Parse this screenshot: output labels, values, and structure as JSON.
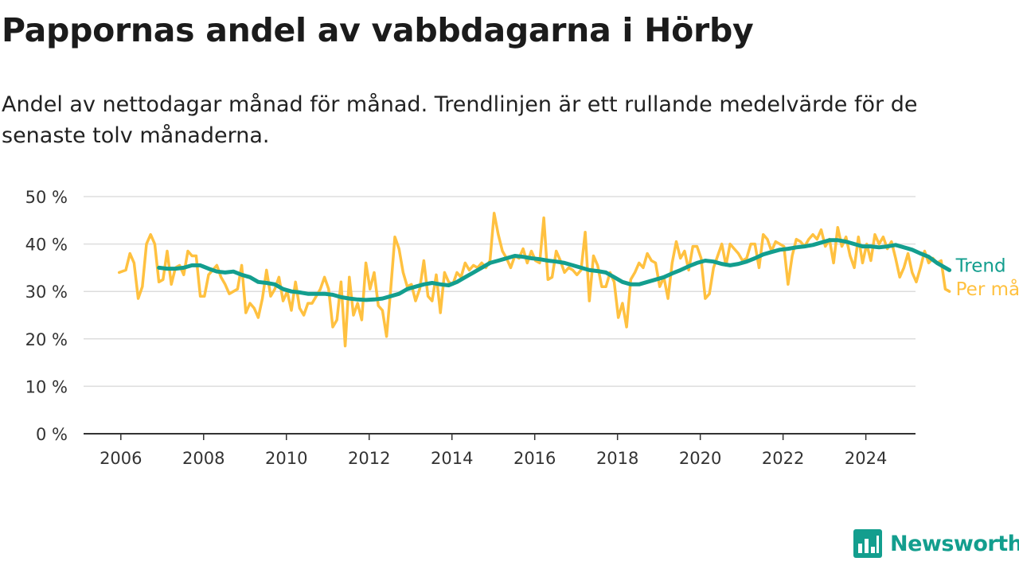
{
  "title": "Pappornas andel av vabbdagarna i Hörby",
  "subtitle": "Andel av nettodagar månad för månad. Trendlinjen är ett rullande medelvärde för de senaste tolv månaderna.",
  "brand": {
    "name": "Newsworthy",
    "color": "#139e8e"
  },
  "colors": {
    "monthly": "#ffc140",
    "trend": "#139e8e",
    "grid": "#dddddd",
    "axis": "#333333"
  },
  "chart_data": {
    "type": "line",
    "title": "Pappornas andel av vabbdagarna i Hörby",
    "xlabel": "",
    "ylabel": "",
    "x_ticks": [
      "2006",
      "2008",
      "2010",
      "2012",
      "2014",
      "2016",
      "2018",
      "2020",
      "2022",
      "2024"
    ],
    "y_ticks": [
      "0 %",
      "10 %",
      "20 %",
      "30 %",
      "40 %",
      "50 %"
    ],
    "xlim": [
      2005.1,
      2025.2
    ],
    "ylim": [
      0,
      50
    ],
    "grid": "horizontal",
    "legend": "end-of-line labels",
    "series": [
      {
        "name": "Per månad",
        "color": "#ffc140",
        "points": [
          [
            2005.96,
            34
          ],
          [
            2006.12,
            34.5
          ],
          [
            2006.22,
            38
          ],
          [
            2006.32,
            36
          ],
          [
            2006.42,
            28.5
          ],
          [
            2006.52,
            31
          ],
          [
            2006.62,
            40
          ],
          [
            2006.72,
            42
          ],
          [
            2006.82,
            40
          ],
          [
            2006.92,
            32
          ],
          [
            2007.02,
            32.5
          ],
          [
            2007.12,
            38.5
          ],
          [
            2007.22,
            31.5
          ],
          [
            2007.32,
            35
          ],
          [
            2007.42,
            35.5
          ],
          [
            2007.52,
            33.5
          ],
          [
            2007.62,
            38.5
          ],
          [
            2007.72,
            37.5
          ],
          [
            2007.82,
            37.5
          ],
          [
            2007.92,
            29
          ],
          [
            2008.02,
            29
          ],
          [
            2008.12,
            33.5
          ],
          [
            2008.22,
            34.5
          ],
          [
            2008.32,
            35.5
          ],
          [
            2008.42,
            33
          ],
          [
            2008.52,
            31.5
          ],
          [
            2008.62,
            29.5
          ],
          [
            2008.72,
            30
          ],
          [
            2008.82,
            30.5
          ],
          [
            2008.92,
            35.5
          ],
          [
            2009.02,
            25.5
          ],
          [
            2009.12,
            27.5
          ],
          [
            2009.22,
            26.5
          ],
          [
            2009.32,
            24.5
          ],
          [
            2009.42,
            28.5
          ],
          [
            2009.52,
            34.5
          ],
          [
            2009.62,
            29
          ],
          [
            2009.72,
            30.5
          ],
          [
            2009.82,
            33
          ],
          [
            2009.92,
            28
          ],
          [
            2010.02,
            30
          ],
          [
            2010.12,
            26
          ],
          [
            2010.22,
            32
          ],
          [
            2010.32,
            26.5
          ],
          [
            2010.42,
            25
          ],
          [
            2010.52,
            27.5
          ],
          [
            2010.62,
            27.5
          ],
          [
            2010.72,
            29
          ],
          [
            2010.82,
            30.5
          ],
          [
            2010.92,
            33
          ],
          [
            2011.02,
            30.5
          ],
          [
            2011.12,
            22.5
          ],
          [
            2011.22,
            24
          ],
          [
            2011.32,
            32
          ],
          [
            2011.42,
            18.5
          ],
          [
            2011.52,
            33
          ],
          [
            2011.62,
            25
          ],
          [
            2011.72,
            27.5
          ],
          [
            2011.82,
            24
          ],
          [
            2011.92,
            36
          ],
          [
            2012.02,
            30.5
          ],
          [
            2012.12,
            34
          ],
          [
            2012.22,
            27
          ],
          [
            2012.32,
            26
          ],
          [
            2012.42,
            20.5
          ],
          [
            2012.52,
            30.5
          ],
          [
            2012.62,
            41.5
          ],
          [
            2012.72,
            39
          ],
          [
            2012.82,
            34
          ],
          [
            2012.92,
            31
          ],
          [
            2013.02,
            31.5
          ],
          [
            2013.12,
            28
          ],
          [
            2013.22,
            30.5
          ],
          [
            2013.32,
            36.5
          ],
          [
            2013.42,
            29
          ],
          [
            2013.52,
            28
          ],
          [
            2013.62,
            33.5
          ],
          [
            2013.72,
            25.5
          ],
          [
            2013.82,
            34
          ],
          [
            2013.92,
            32
          ],
          [
            2014.02,
            31.5
          ],
          [
            2014.12,
            34
          ],
          [
            2014.22,
            33
          ],
          [
            2014.32,
            36
          ],
          [
            2014.42,
            34.5
          ],
          [
            2014.52,
            35.5
          ],
          [
            2014.62,
            35
          ],
          [
            2014.72,
            36
          ],
          [
            2014.82,
            35
          ],
          [
            2014.92,
            36.5
          ],
          [
            2015.02,
            46.5
          ],
          [
            2015.12,
            42
          ],
          [
            2015.22,
            38.5
          ],
          [
            2015.32,
            37
          ],
          [
            2015.42,
            35
          ],
          [
            2015.52,
            37.5
          ],
          [
            2015.62,
            37
          ],
          [
            2015.72,
            39
          ],
          [
            2015.82,
            36
          ],
          [
            2015.92,
            38.5
          ],
          [
            2016.02,
            36.5
          ],
          [
            2016.12,
            36
          ],
          [
            2016.22,
            45.5
          ],
          [
            2016.32,
            32.5
          ],
          [
            2016.42,
            33
          ],
          [
            2016.52,
            38.5
          ],
          [
            2016.62,
            36.5
          ],
          [
            2016.72,
            34
          ],
          [
            2016.82,
            35
          ],
          [
            2016.92,
            34.5
          ],
          [
            2017.02,
            33.5
          ],
          [
            2017.12,
            34.5
          ],
          [
            2017.22,
            42.5
          ],
          [
            2017.32,
            28
          ],
          [
            2017.42,
            37.5
          ],
          [
            2017.52,
            35.5
          ],
          [
            2017.62,
            31
          ],
          [
            2017.72,
            31
          ],
          [
            2017.82,
            34
          ],
          [
            2017.92,
            32
          ],
          [
            2018.02,
            24.5
          ],
          [
            2018.12,
            27.5
          ],
          [
            2018.22,
            22.5
          ],
          [
            2018.32,
            32.5
          ],
          [
            2018.42,
            34
          ],
          [
            2018.52,
            36
          ],
          [
            2018.62,
            35
          ],
          [
            2018.72,
            38
          ],
          [
            2018.82,
            36.5
          ],
          [
            2018.92,
            36
          ],
          [
            2019.02,
            31
          ],
          [
            2019.12,
            33
          ],
          [
            2019.22,
            28.5
          ],
          [
            2019.32,
            36
          ],
          [
            2019.42,
            40.5
          ],
          [
            2019.52,
            37
          ],
          [
            2019.62,
            38.5
          ],
          [
            2019.72,
            34.5
          ],
          [
            2019.82,
            39.5
          ],
          [
            2019.92,
            39.5
          ],
          [
            2020.02,
            37
          ],
          [
            2020.12,
            28.5
          ],
          [
            2020.22,
            29.5
          ],
          [
            2020.32,
            35
          ],
          [
            2020.42,
            37.5
          ],
          [
            2020.52,
            40
          ],
          [
            2020.62,
            35.5
          ],
          [
            2020.72,
            40
          ],
          [
            2020.82,
            39
          ],
          [
            2020.92,
            38
          ],
          [
            2021.02,
            36.5
          ],
          [
            2021.12,
            37
          ],
          [
            2021.22,
            40
          ],
          [
            2021.32,
            40
          ],
          [
            2021.42,
            35
          ],
          [
            2021.52,
            42
          ],
          [
            2021.62,
            41
          ],
          [
            2021.72,
            38.5
          ],
          [
            2021.82,
            40.5
          ],
          [
            2021.92,
            40
          ],
          [
            2022.02,
            39.5
          ],
          [
            2022.12,
            31.5
          ],
          [
            2022.22,
            37.5
          ],
          [
            2022.32,
            41
          ],
          [
            2022.42,
            40.5
          ],
          [
            2022.52,
            39.5
          ],
          [
            2022.62,
            41
          ],
          [
            2022.72,
            42
          ],
          [
            2022.82,
            41
          ],
          [
            2022.92,
            43
          ],
          [
            2023.02,
            39.5
          ],
          [
            2023.12,
            41
          ],
          [
            2023.22,
            36
          ],
          [
            2023.32,
            43.5
          ],
          [
            2023.42,
            39.5
          ],
          [
            2023.52,
            41.5
          ],
          [
            2023.62,
            37.5
          ],
          [
            2023.72,
            35
          ],
          [
            2023.82,
            41.5
          ],
          [
            2023.92,
            36
          ],
          [
            2024.02,
            40
          ],
          [
            2024.12,
            36.5
          ],
          [
            2024.22,
            42
          ],
          [
            2024.32,
            40
          ],
          [
            2024.42,
            41.5
          ],
          [
            2024.52,
            39
          ],
          [
            2024.62,
            40.5
          ],
          [
            2024.72,
            37
          ],
          [
            2024.82,
            33
          ],
          [
            2024.92,
            35
          ],
          [
            2025.02,
            38
          ],
          [
            2025.12,
            34
          ],
          [
            2025.22,
            32
          ],
          [
            2025.32,
            35
          ],
          [
            2025.42,
            38.5
          ],
          [
            2025.52,
            36
          ],
          [
            2025.62,
            37
          ],
          [
            2025.72,
            36
          ],
          [
            2025.82,
            36.5
          ],
          [
            2025.92,
            30.5
          ],
          [
            2026.02,
            30
          ]
        ]
      },
      {
        "name": "Trend",
        "color": "#139e8e",
        "points": [
          [
            2006.92,
            35
          ],
          [
            2007.12,
            34.8
          ],
          [
            2007.32,
            34.8
          ],
          [
            2007.52,
            35
          ],
          [
            2007.72,
            35.5
          ],
          [
            2007.92,
            35.5
          ],
          [
            2008.12,
            34.8
          ],
          [
            2008.32,
            34.2
          ],
          [
            2008.52,
            34
          ],
          [
            2008.72,
            34.2
          ],
          [
            2008.92,
            33.5
          ],
          [
            2009.12,
            33
          ],
          [
            2009.32,
            32
          ],
          [
            2009.52,
            31.8
          ],
          [
            2009.72,
            31.5
          ],
          [
            2009.92,
            30.5
          ],
          [
            2010.12,
            30
          ],
          [
            2010.32,
            29.8
          ],
          [
            2010.52,
            29.5
          ],
          [
            2010.72,
            29.5
          ],
          [
            2010.92,
            29.5
          ],
          [
            2011.12,
            29.3
          ],
          [
            2011.32,
            28.8
          ],
          [
            2011.52,
            28.5
          ],
          [
            2011.72,
            28.3
          ],
          [
            2011.92,
            28.2
          ],
          [
            2012.12,
            28.3
          ],
          [
            2012.32,
            28.5
          ],
          [
            2012.52,
            29
          ],
          [
            2012.72,
            29.5
          ],
          [
            2012.92,
            30.5
          ],
          [
            2013.12,
            31
          ],
          [
            2013.32,
            31.5
          ],
          [
            2013.52,
            31.8
          ],
          [
            2013.72,
            31.5
          ],
          [
            2013.92,
            31.3
          ],
          [
            2014.12,
            32
          ],
          [
            2014.32,
            33
          ],
          [
            2014.52,
            34
          ],
          [
            2014.72,
            35
          ],
          [
            2014.92,
            36
          ],
          [
            2015.12,
            36.5
          ],
          [
            2015.32,
            37
          ],
          [
            2015.52,
            37.5
          ],
          [
            2015.72,
            37.3
          ],
          [
            2015.92,
            37
          ],
          [
            2016.12,
            36.8
          ],
          [
            2016.32,
            36.5
          ],
          [
            2016.52,
            36.3
          ],
          [
            2016.72,
            36
          ],
          [
            2016.92,
            35.5
          ],
          [
            2017.12,
            35
          ],
          [
            2017.32,
            34.5
          ],
          [
            2017.52,
            34.3
          ],
          [
            2017.72,
            34
          ],
          [
            2017.92,
            33
          ],
          [
            2018.12,
            32
          ],
          [
            2018.32,
            31.5
          ],
          [
            2018.52,
            31.5
          ],
          [
            2018.72,
            32
          ],
          [
            2018.92,
            32.5
          ],
          [
            2019.12,
            33
          ],
          [
            2019.32,
            33.8
          ],
          [
            2019.52,
            34.5
          ],
          [
            2019.72,
            35.3
          ],
          [
            2019.92,
            36
          ],
          [
            2020.12,
            36.5
          ],
          [
            2020.32,
            36.3
          ],
          [
            2020.52,
            35.8
          ],
          [
            2020.72,
            35.5
          ],
          [
            2020.92,
            35.8
          ],
          [
            2021.12,
            36.3
          ],
          [
            2021.32,
            37
          ],
          [
            2021.52,
            37.8
          ],
          [
            2021.72,
            38.3
          ],
          [
            2021.92,
            38.8
          ],
          [
            2022.12,
            39
          ],
          [
            2022.32,
            39.3
          ],
          [
            2022.52,
            39.5
          ],
          [
            2022.72,
            39.8
          ],
          [
            2022.92,
            40.3
          ],
          [
            2023.12,
            40.8
          ],
          [
            2023.32,
            40.8
          ],
          [
            2023.52,
            40.5
          ],
          [
            2023.72,
            40
          ],
          [
            2023.92,
            39.5
          ],
          [
            2024.12,
            39.5
          ],
          [
            2024.32,
            39.3
          ],
          [
            2024.52,
            39.5
          ],
          [
            2024.72,
            39.8
          ],
          [
            2024.92,
            39.3
          ],
          [
            2025.12,
            38.8
          ],
          [
            2025.32,
            38
          ],
          [
            2025.52,
            37.3
          ],
          [
            2025.72,
            36
          ],
          [
            2025.92,
            35
          ],
          [
            2026.02,
            34.5
          ]
        ]
      }
    ],
    "series_labels": {
      "trend": "Trend",
      "monthly": "Per månad"
    }
  }
}
